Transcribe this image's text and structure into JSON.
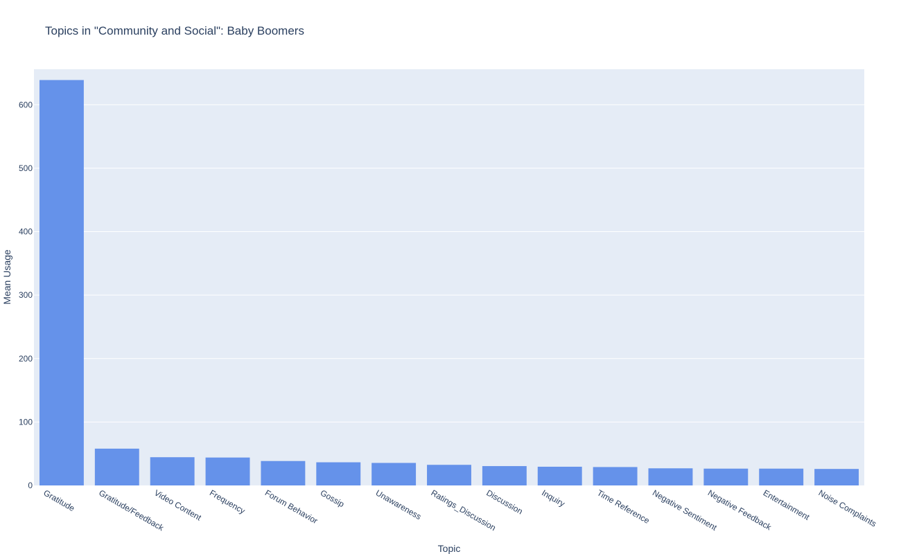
{
  "chart_data": {
    "type": "bar",
    "title": "Topics in \"Community and Social\": Baby Boomers",
    "xlabel": "Topic",
    "ylabel": "Mean Usage",
    "ylim": [
      0,
      656
    ],
    "yticks": [
      0,
      100,
      200,
      300,
      400,
      500,
      600
    ],
    "grid": true,
    "legend": "none",
    "categories": [
      "Gratitude",
      "Gratitude/Feedback",
      "Video Content",
      "Frequency",
      "Forum Behavior",
      "Gossip",
      "Unawareness",
      "Ratings_Discussion",
      "Discussion",
      "Inquiry",
      "Time Reference",
      "Negative Sentiment",
      "Negative Feedback",
      "Entertainment",
      "Noise Complaints"
    ],
    "values": [
      639,
      58,
      44.5,
      44,
      38.5,
      36.5,
      35.5,
      32.5,
      30.5,
      29.5,
      29,
      27,
      26.5,
      26.5,
      26
    ],
    "colors": {
      "bar": "#6592ea",
      "plot_bg": "#e5ecf6",
      "grid": "#ffffff",
      "text": "#2a3f5f"
    }
  }
}
